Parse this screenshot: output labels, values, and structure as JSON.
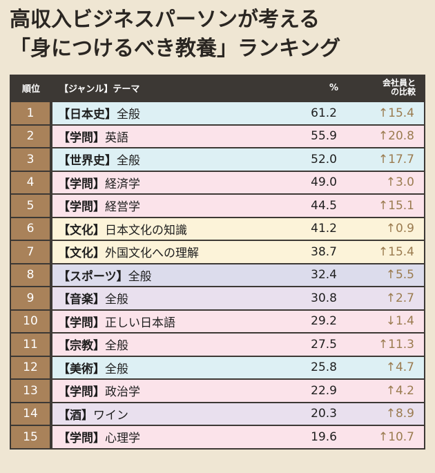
{
  "title": {
    "line1": "高収入ビジネスパーソンが考える",
    "line2": "「身につけるべき教養」ランキング"
  },
  "header": {
    "rank": "順位",
    "theme": "【ジャンル】テーマ",
    "percent": "%",
    "compare_line1": "会社員と",
    "compare_line2": "の比較"
  },
  "colors": {
    "header_bg": "#3c3834",
    "rank_bg": "#a9825a",
    "compare_text": "#9a7b4f",
    "row_blue": "#ddf0f4",
    "row_pink": "#fbe3ea",
    "row_cream": "#fcf3d9",
    "row_lavender": "#dcdcec",
    "row_purple": "#e9e0ee"
  },
  "rows": [
    {
      "rank": "1",
      "genre": "【日本史】",
      "topic": "全般",
      "percent": "61.2",
      "compare": "↑15.4",
      "bg": "bg-blue"
    },
    {
      "rank": "2",
      "genre": "【学問】",
      "topic": "英語",
      "percent": "55.9",
      "compare": "↑20.8",
      "bg": "bg-pink"
    },
    {
      "rank": "3",
      "genre": "【世界史】",
      "topic": "全般",
      "percent": "52.0",
      "compare": "↑17.7",
      "bg": "bg-blue"
    },
    {
      "rank": "4",
      "genre": "【学問】",
      "topic": "経済学",
      "percent": "49.0",
      "compare": "↑3.0",
      "bg": "bg-pink"
    },
    {
      "rank": "5",
      "genre": "【学問】",
      "topic": "経営学",
      "percent": "44.5",
      "compare": "↑15.1",
      "bg": "bg-pink"
    },
    {
      "rank": "6",
      "genre": "【文化】",
      "topic": "日本文化の知識",
      "percent": "41.2",
      "compare": "↑0.9",
      "bg": "bg-cream"
    },
    {
      "rank": "7",
      "genre": "【文化】",
      "topic": "外国文化への理解",
      "percent": "38.7",
      "compare": "↑15.4",
      "bg": "bg-cream"
    },
    {
      "rank": "8",
      "genre": "【スポーツ】",
      "topic": "全般",
      "percent": "32.4",
      "compare": "↑5.5",
      "bg": "bg-lav"
    },
    {
      "rank": "9",
      "genre": "【音楽】",
      "topic": "全般",
      "percent": "30.8",
      "compare": "↑2.7",
      "bg": "bg-purple"
    },
    {
      "rank": "10",
      "genre": "【学問】",
      "topic": "正しい日本語",
      "percent": "29.2",
      "compare": "↓1.4",
      "bg": "bg-pink"
    },
    {
      "rank": "11",
      "genre": "【宗教】",
      "topic": "全般",
      "percent": "27.5",
      "compare": "↑11.3",
      "bg": "bg-pink"
    },
    {
      "rank": "12",
      "genre": "【美術】",
      "topic": "全般",
      "percent": "25.8",
      "compare": "↑4.7",
      "bg": "bg-blue"
    },
    {
      "rank": "13",
      "genre": "【学問】",
      "topic": "政治学",
      "percent": "22.9",
      "compare": "↑4.2",
      "bg": "bg-pink"
    },
    {
      "rank": "14",
      "genre": "【酒】",
      "topic": "ワイン",
      "percent": "20.3",
      "compare": "↑8.9",
      "bg": "bg-purple"
    },
    {
      "rank": "15",
      "genre": "【学問】",
      "topic": "心理学",
      "percent": "19.6",
      "compare": "↑10.7",
      "bg": "bg-pink"
    }
  ]
}
